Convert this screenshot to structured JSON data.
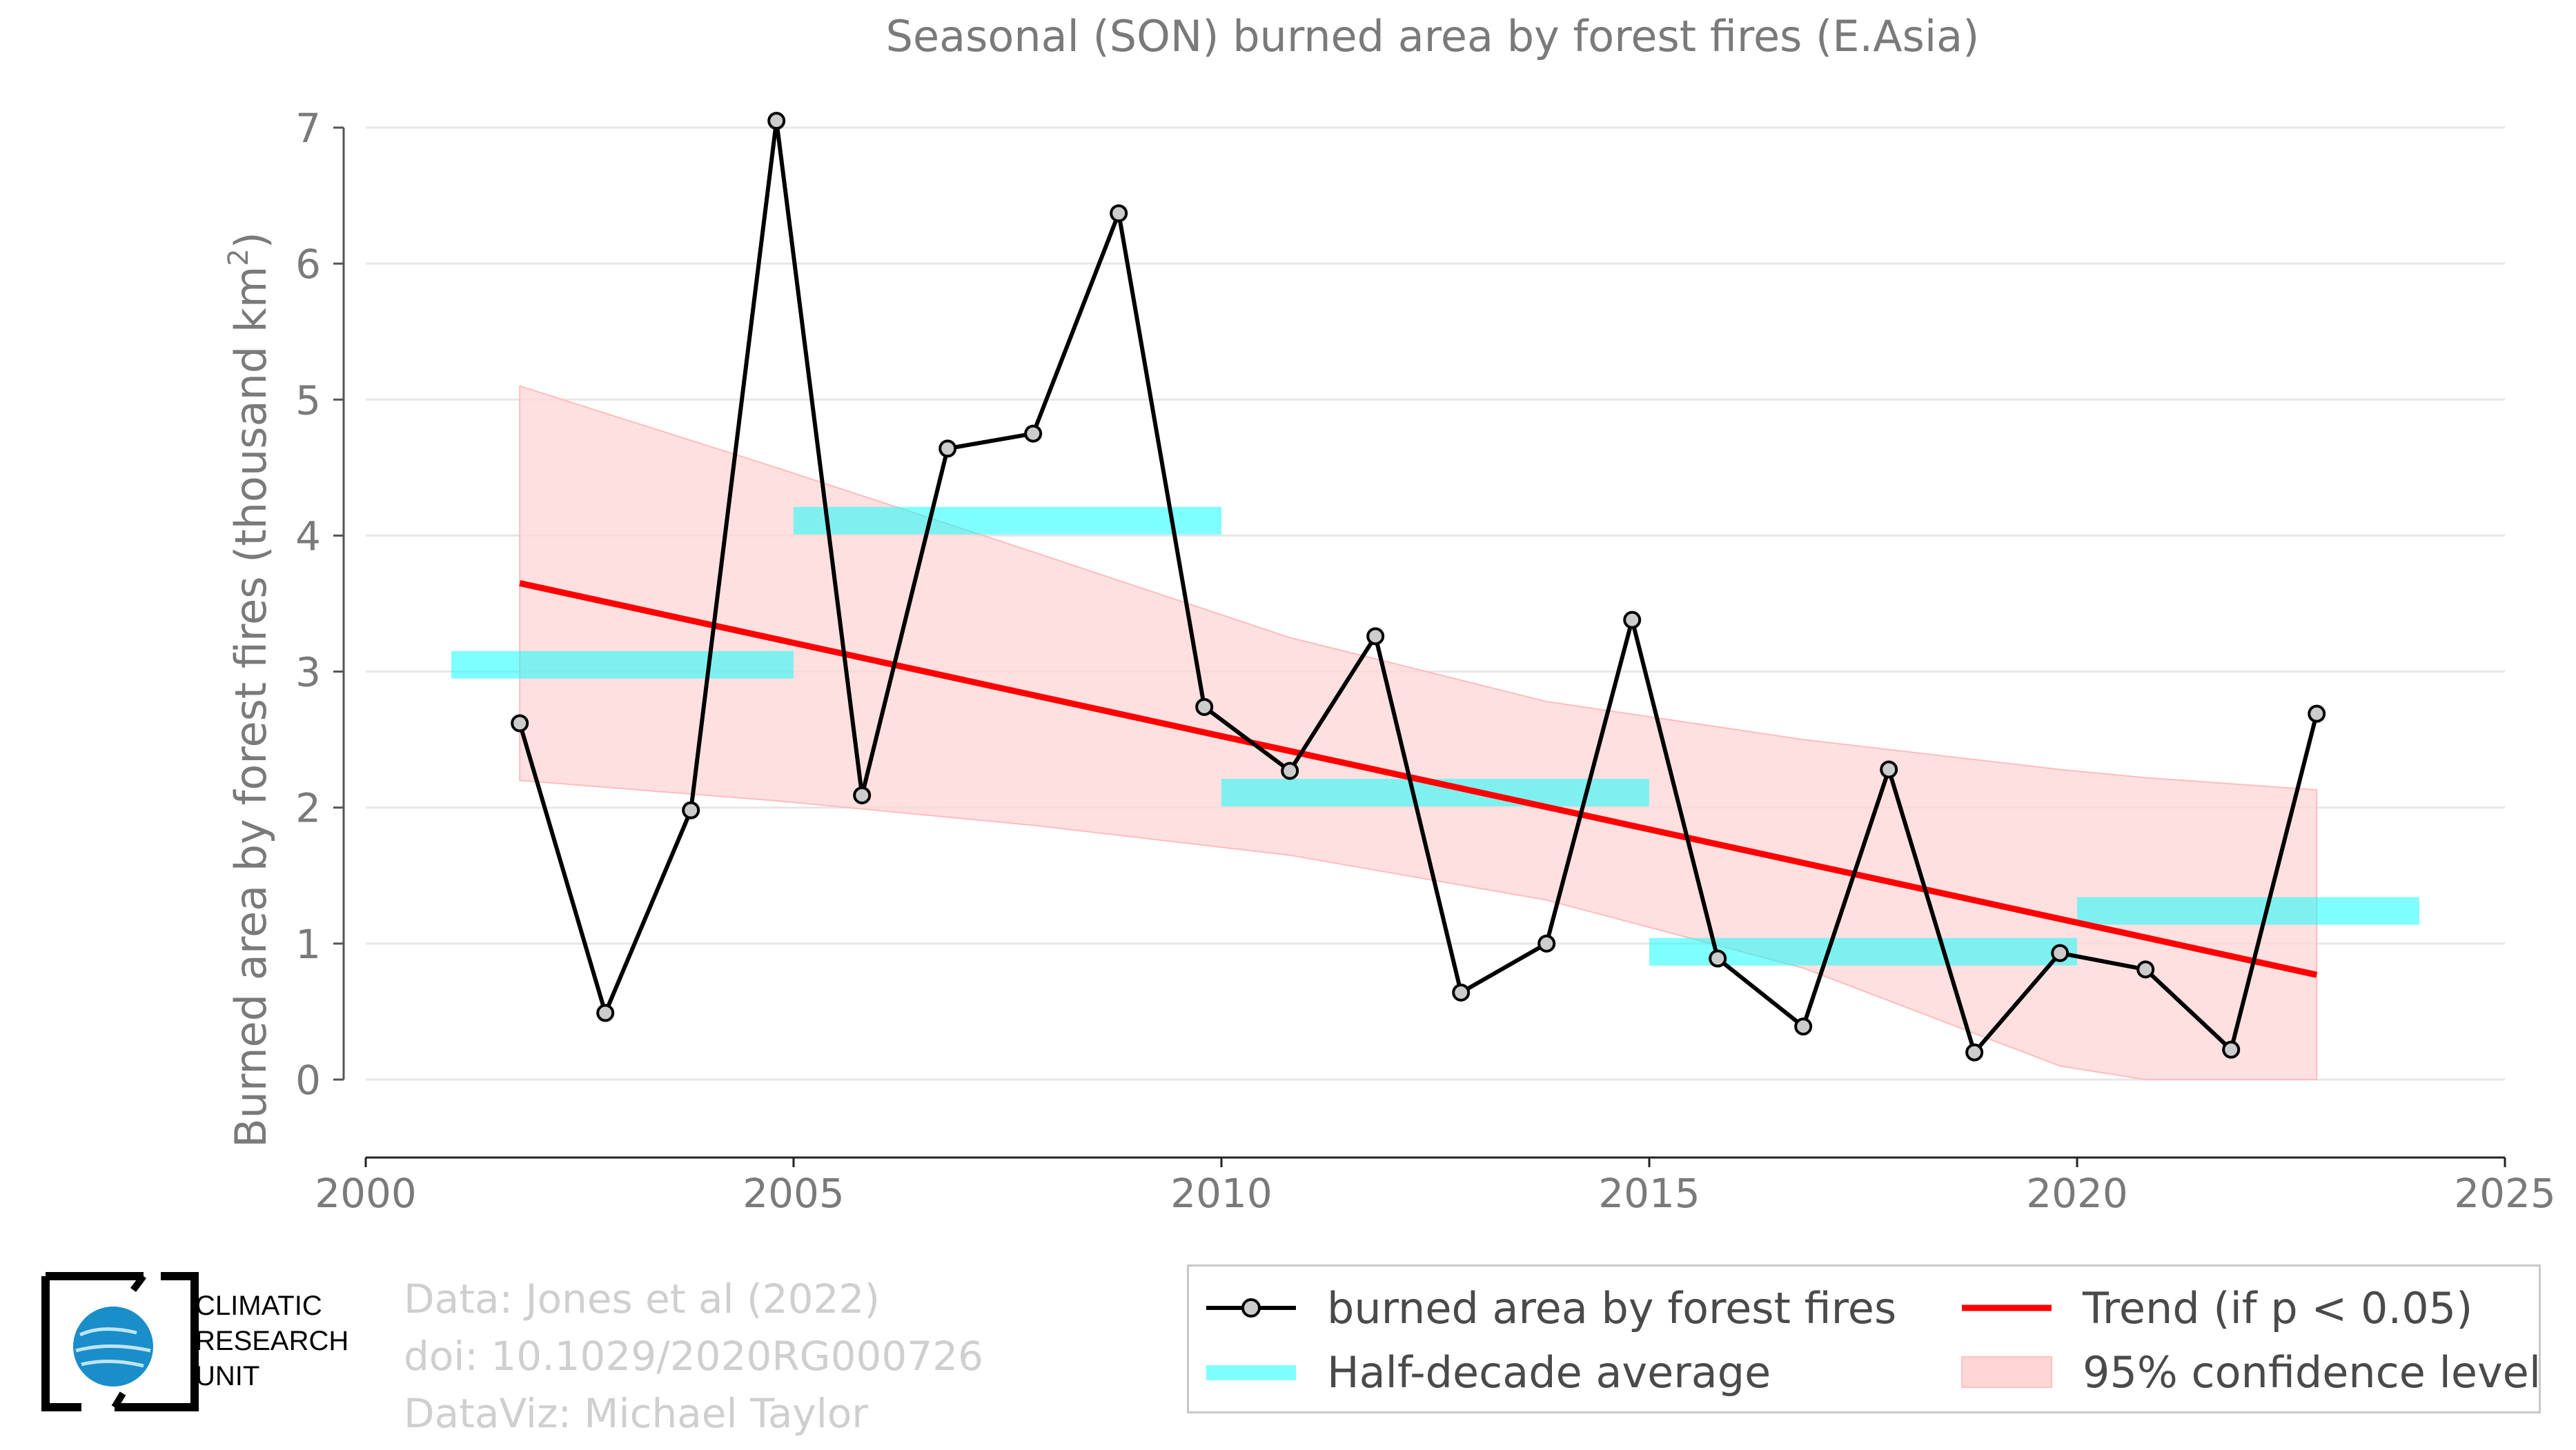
{
  "chart_data": {
    "type": "line",
    "title": "Seasonal (SON) burned area by forest fires (E.Asia)",
    "ylabel": "Burned area by forest fires (thousand km",
    "ylabel_sup": "2",
    "ylabel_end": ")",
    "xlim": [
      2000,
      2025
    ],
    "ylim": [
      -0.55,
      7.1
    ],
    "xticks": [
      2000,
      2005,
      2010,
      2015,
      2020,
      2025
    ],
    "yticks": [
      0,
      1,
      2,
      3,
      4,
      5,
      6,
      7
    ],
    "grid": "horizontal",
    "series": [
      {
        "name": "burned area by forest fires",
        "color": "#000000",
        "marker_fill": "#cccccc",
        "x": [
          2001.8,
          2002.8,
          2003.8,
          2004.8,
          2005.8,
          2006.8,
          2007.8,
          2008.8,
          2009.8,
          2010.8,
          2011.8,
          2012.8,
          2013.8,
          2014.8,
          2015.8,
          2016.8,
          2017.8,
          2018.8,
          2019.8,
          2020.8,
          2021.8,
          2022.8
        ],
        "values": [
          2.62,
          0.49,
          1.98,
          7.05,
          2.09,
          4.64,
          4.75,
          6.37,
          2.74,
          2.27,
          3.26,
          0.64,
          1.0,
          3.38,
          0.89,
          0.39,
          2.28,
          0.2,
          0.93,
          0.81,
          0.22,
          2.69
        ]
      },
      {
        "name": "Half-decade average",
        "color": "#00ffff",
        "segments": [
          {
            "x0": 2001.0,
            "x1": 2005.0,
            "y": 3.05
          },
          {
            "x0": 2005.0,
            "x1": 2010.0,
            "y": 4.11
          },
          {
            "x0": 2010.0,
            "x1": 2015.0,
            "y": 2.11
          },
          {
            "x0": 2015.0,
            "x1": 2020.0,
            "y": 0.94
          },
          {
            "x0": 2020.0,
            "x1": 2024.0,
            "y": 1.24
          }
        ]
      },
      {
        "name": "Trend (if p < 0.05)",
        "color": "#ff0000",
        "x": [
          2001.8,
          2022.8
        ],
        "values": [
          3.65,
          0.77
        ]
      },
      {
        "name": "95% confidence level",
        "color": "#ffcccc",
        "x": [
          2001.8,
          2004.8,
          2007.8,
          2010.8,
          2013.8,
          2016.8,
          2019.8,
          2020.8,
          2022.8
        ],
        "upper": [
          5.1,
          4.5,
          3.88,
          3.25,
          2.78,
          2.5,
          2.28,
          2.22,
          2.13
        ],
        "lower": [
          2.2,
          2.05,
          1.87,
          1.65,
          1.32,
          0.82,
          0.1,
          0.0,
          0.0
        ]
      }
    ],
    "legend_position": "bottom-right"
  },
  "credits": {
    "line1": "Data: Jones et al (2022)",
    "line2": "doi: 10.1029/2020RG000726",
    "line3": "DataViz: Michael Taylor"
  },
  "logo": {
    "line1": "CLIMATIC",
    "line2": "RESEARCH",
    "line3": "UNIT"
  },
  "legend": {
    "item1": "burned area by forest fires",
    "item2": "Half-decade average",
    "item3": "Trend (if p < 0.05)",
    "item4": "95% confidence level"
  }
}
